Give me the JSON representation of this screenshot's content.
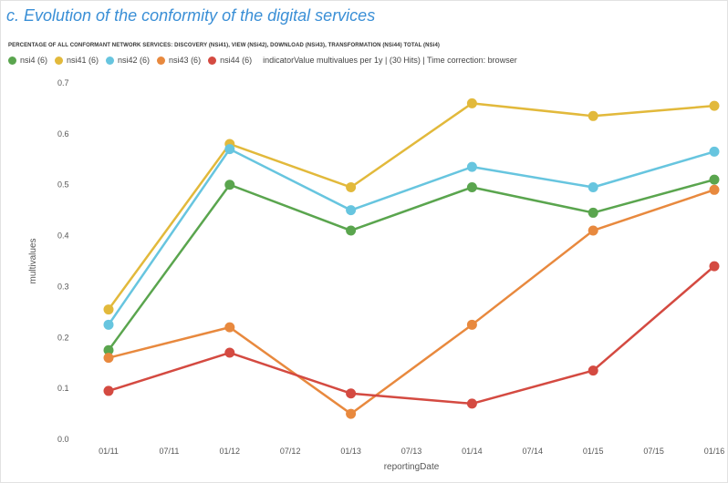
{
  "header": {
    "title": "c. Evolution of the conformity of the digital services",
    "subtitle": "PERCENTAGE OF ALL CONFORMANT NETWORK SERVICES: DISCOVERY (NSi41), VIEW (NSi42), DOWNLOAD (NSi43), TRANSFORMATION (NSi44) TOTAL (NSi4)"
  },
  "legend": {
    "note": "indicatorValue multivalues per 1y | (30 Hits) | Time correction: browser"
  },
  "chart_data": {
    "type": "line",
    "title": "c. Evolution of the conformity of the digital services",
    "xlabel": "reportingDate",
    "ylabel": "multivalues",
    "x_ticks": [
      "01/11",
      "07/11",
      "01/12",
      "07/12",
      "01/13",
      "07/13",
      "01/14",
      "07/14",
      "01/15",
      "07/15",
      "01/16"
    ],
    "y_ticks": [
      "0.0",
      "0.1",
      "0.2",
      "0.3",
      "0.4",
      "0.5",
      "0.6",
      "0.7"
    ],
    "ylim": [
      0,
      0.7
    ],
    "x": [
      "01/11",
      "01/12",
      "01/13",
      "01/14",
      "01/15",
      "01/16"
    ],
    "series": [
      {
        "name": "nsi4 (6)",
        "color": "#5aa54e",
        "values": [
          0.175,
          0.5,
          0.41,
          0.495,
          0.445,
          0.51
        ]
      },
      {
        "name": "nsi41 (6)",
        "color": "#e2b93b",
        "values": [
          0.255,
          0.58,
          0.495,
          0.66,
          0.635,
          0.655
        ]
      },
      {
        "name": "nsi42 (6)",
        "color": "#67c5df",
        "values": [
          0.225,
          0.57,
          0.45,
          0.535,
          0.495,
          0.565
        ]
      },
      {
        "name": "nsi43 (6)",
        "color": "#e8893e",
        "values": [
          0.16,
          0.22,
          0.05,
          0.225,
          0.41,
          0.49
        ]
      },
      {
        "name": "nsi44 (6)",
        "color": "#d44a41",
        "values": [
          0.095,
          0.17,
          0.09,
          0.07,
          0.135,
          0.34
        ]
      }
    ],
    "grid": false,
    "legend_position": "top-left"
  }
}
